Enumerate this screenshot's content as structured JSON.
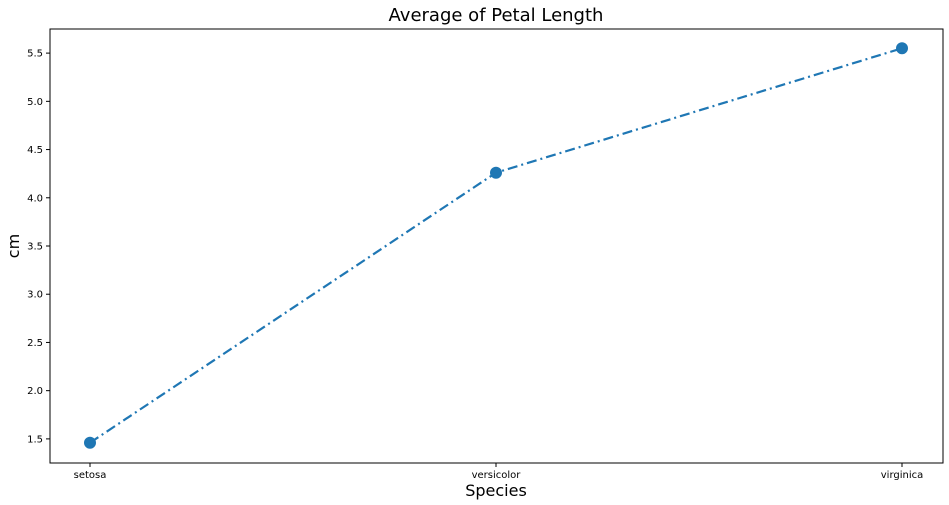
{
  "chart_data": {
    "type": "line",
    "title": "Average of Petal Length",
    "xlabel": "Species",
    "ylabel": "cm",
    "categories": [
      "setosa",
      "versicolor",
      "virginica"
    ],
    "series": [
      {
        "values": [
          1.46,
          4.26,
          5.55
        ]
      }
    ],
    "ylim": [
      1.25,
      5.75
    ],
    "yticks": [
      "1.5",
      "2.0",
      "2.5",
      "3.0",
      "3.5",
      "4.0",
      "4.5",
      "5.0",
      "5.5"
    ],
    "grid": false,
    "line_style": "dash-dot",
    "marker": "circle",
    "color": "#1f77b4"
  }
}
